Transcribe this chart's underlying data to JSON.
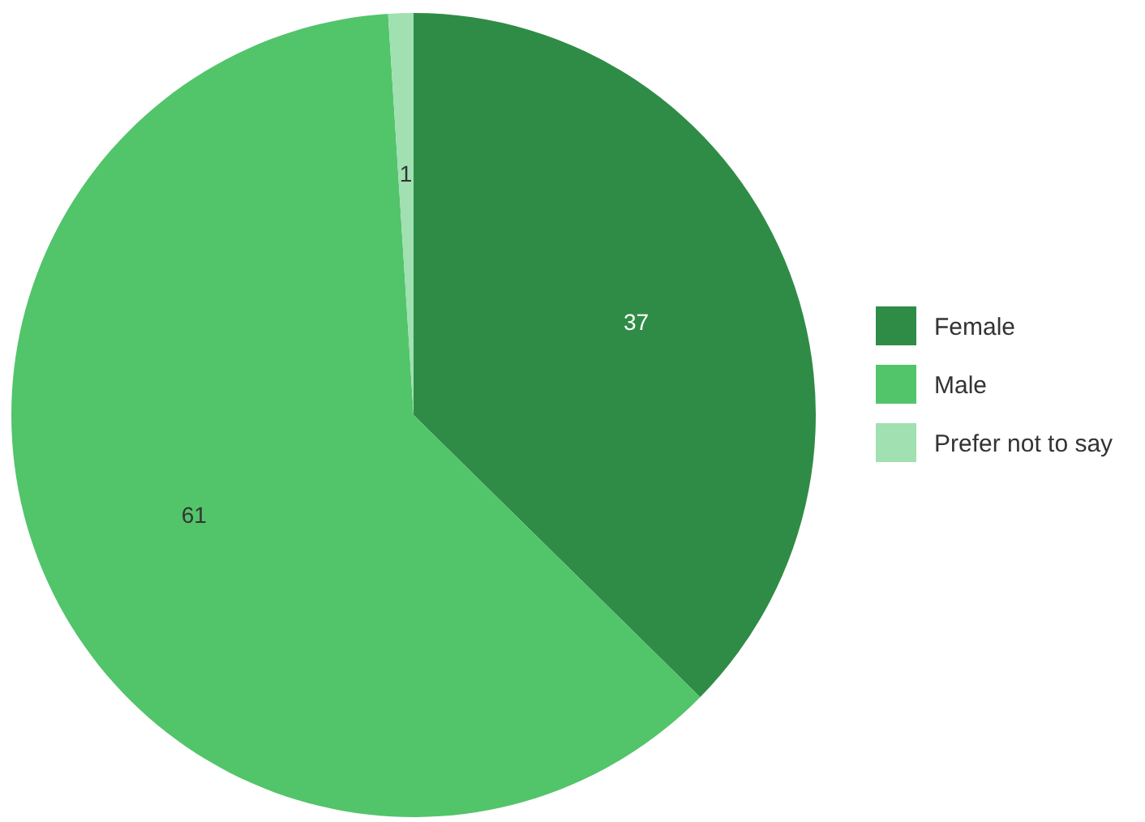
{
  "chart_data": {
    "type": "pie",
    "categories": [
      "Female",
      "Male",
      "Prefer not to say"
    ],
    "values": [
      37,
      61,
      1
    ],
    "colors": [
      "#2f8c46",
      "#52c46a",
      "#a0e0b1"
    ],
    "data_labels": true,
    "legend": "right"
  }
}
